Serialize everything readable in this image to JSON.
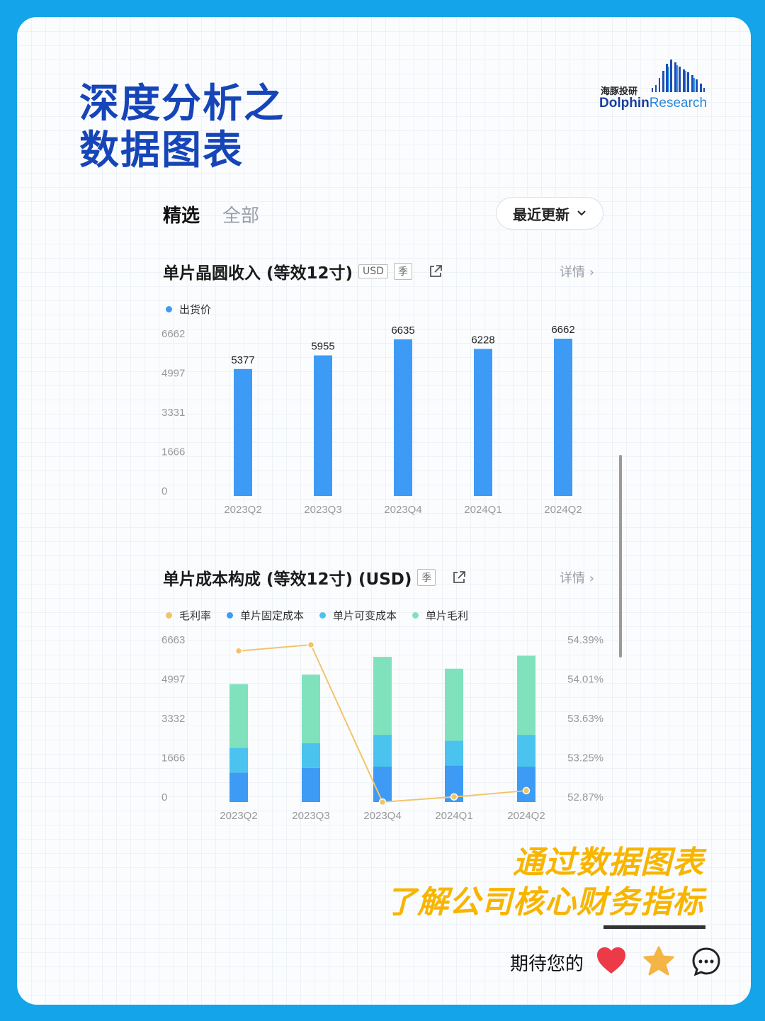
{
  "headline": {
    "line1": "深度分析之",
    "line2": "数据图表"
  },
  "logo": {
    "cn": "海豚投研",
    "en_dark": "Dolphin",
    "en_light": "Research"
  },
  "tabs": [
    {
      "label": "精选"
    },
    {
      "label": "全部"
    }
  ],
  "sort": {
    "label": "最近更新"
  },
  "detail_label": "详情",
  "charts": {
    "chart1": {
      "title": "单片晶圆收入 (等效12寸)",
      "tags": [
        "USD",
        "季"
      ]
    },
    "chart2": {
      "title": "单片成本构成 (等效12寸) (USD)",
      "tags": [
        "季"
      ]
    }
  },
  "chart_data": [
    {
      "type": "bar",
      "categories": [
        "2023Q2",
        "2023Q3",
        "2023Q4",
        "2024Q1",
        "2024Q2"
      ],
      "series": [
        {
          "name": "出货价",
          "values": [
            5377,
            5955,
            6635,
            6228,
            6662
          ],
          "color": "#3d9bf5"
        }
      ],
      "yticks": [
        "0",
        "1666",
        "3331",
        "4997",
        "6662"
      ],
      "ylim": [
        0,
        6662
      ],
      "data_labels": [
        "5377",
        "5955",
        "6635",
        "6228",
        "6662"
      ]
    },
    {
      "type": "bar",
      "stacked": true,
      "categories": [
        "2023Q2",
        "2023Q3",
        "2023Q4",
        "2024Q1",
        "2024Q2"
      ],
      "series": [
        {
          "name": "单片固定成本",
          "values": [
            1250,
            1450,
            1500,
            1550,
            1500
          ],
          "color": "#3d9bf5"
        },
        {
          "name": "单片可变成本",
          "values": [
            1050,
            1050,
            1350,
            1050,
            1350
          ],
          "color": "#4ac4ee"
        },
        {
          "name": "单片毛利",
          "values": [
            2700,
            2900,
            3300,
            3050,
            3350
          ],
          "color": "#7fe2bd"
        }
      ],
      "line": {
        "name": "毛利率",
        "values": [
          54.33,
          54.39,
          52.87,
          52.92,
          52.98
        ],
        "color": "#f2c46a"
      },
      "yticks": [
        "0",
        "1666",
        "3332",
        "4997",
        "6663"
      ],
      "ylim": [
        0,
        6663
      ],
      "y2ticks": [
        "52.87%",
        "53.25%",
        "53.63%",
        "54.01%",
        "54.39%"
      ],
      "y2lim": [
        52.87,
        54.39
      ],
      "legend_order": [
        "毛利率",
        "单片固定成本",
        "单片可变成本",
        "单片毛利"
      ],
      "legend_colors": [
        "#f2c46a",
        "#3d9bf5",
        "#4ac4ee",
        "#7fe2bd"
      ]
    }
  ],
  "slogan": {
    "line1": "通过数据图表",
    "line2": "了解公司核心财务指标"
  },
  "footer": {
    "text": "期待您的"
  }
}
